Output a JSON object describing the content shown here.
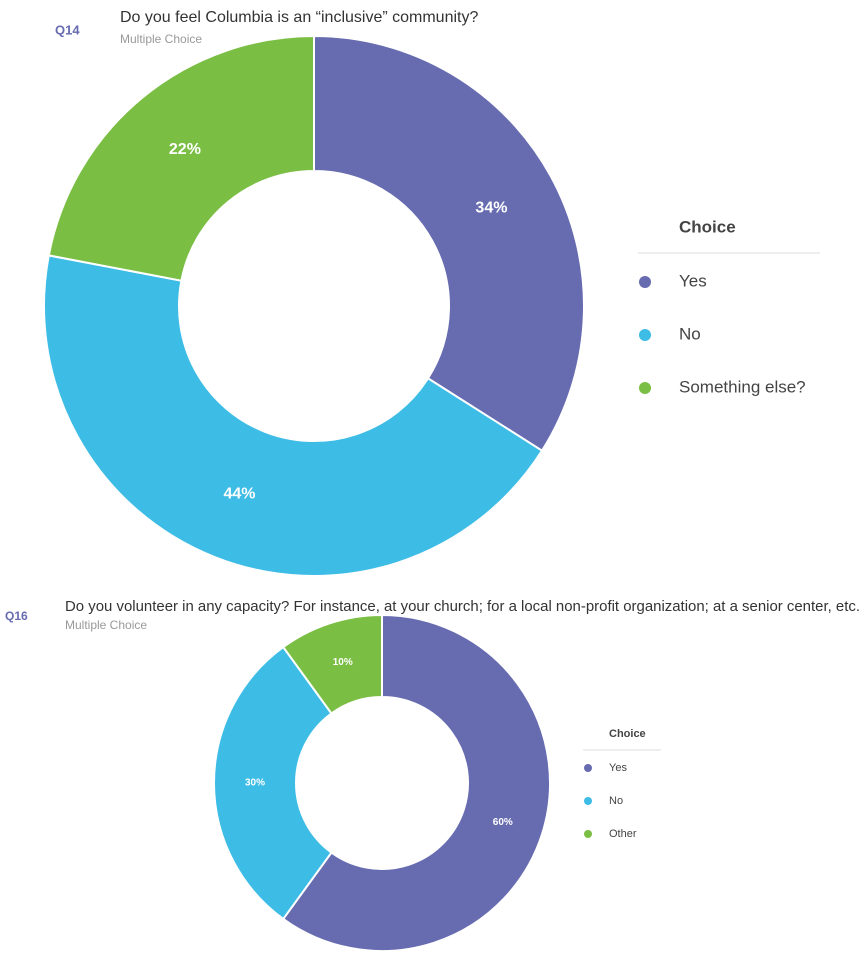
{
  "chart_data": [
    {
      "type": "donut",
      "question": "Q14",
      "title": "Do you feel Columbia is an “inclusive” community?",
      "subtitle": "Multiple Choice",
      "legend_title": "Choice",
      "categories": [
        "Yes",
        "No",
        "Something else?"
      ],
      "values": [
        34,
        44,
        22
      ],
      "value_labels": [
        "34%",
        "44%",
        "22%"
      ],
      "colors": [
        "#676bb0",
        "#3dbce6",
        "#7bbe44"
      ]
    },
    {
      "type": "donut",
      "question": "Q16",
      "title": "Do you volunteer in any capacity? For instance, at your church; for a local non-profit organization; at a senior center, etc.",
      "subtitle": "Multiple Choice",
      "legend_title": "Choice",
      "categories": [
        "Yes",
        "No",
        "Other"
      ],
      "values": [
        60,
        30,
        10
      ],
      "value_labels": [
        "60%",
        "30%",
        "10%"
      ],
      "colors": [
        "#676bb0",
        "#3dbce6",
        "#7bbe44"
      ]
    }
  ]
}
